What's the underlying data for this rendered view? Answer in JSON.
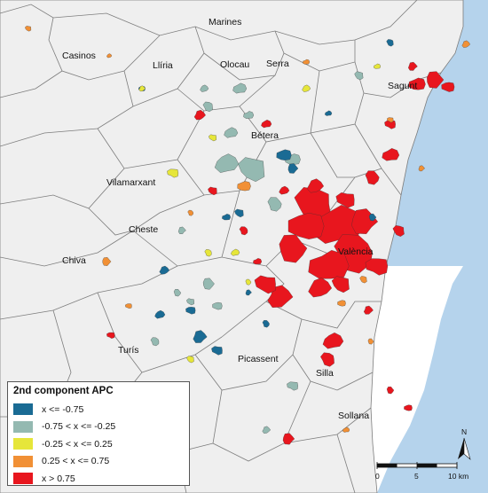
{
  "map": {
    "colors": {
      "land": "#efefef",
      "sea": "#b5d3ec",
      "border": "#7d7d7d"
    },
    "places": [
      {
        "name": "Marines"
      },
      {
        "name": "Casinos"
      },
      {
        "name": "Llíria"
      },
      {
        "name": "Olocau"
      },
      {
        "name": "Serra"
      },
      {
        "name": "Sagunt"
      },
      {
        "name": "Bétera"
      },
      {
        "name": "Vilamarxant"
      },
      {
        "name": "Cheste"
      },
      {
        "name": "Chiva"
      },
      {
        "name": "València"
      },
      {
        "name": "Picassent"
      },
      {
        "name": "Turís"
      },
      {
        "name": "Silla"
      },
      {
        "name": "Sollana"
      }
    ]
  },
  "legend": {
    "title": "2nd component APC",
    "classes": [
      {
        "label": "x <= -0.75",
        "color": "#1a6b94"
      },
      {
        "label": "-0.75 < x <= -0.25",
        "color": "#94b9b1"
      },
      {
        "label": "-0.25 < x <= 0.25",
        "color": "#e6e63a"
      },
      {
        "label": "0.25 < x <= 0.75",
        "color": "#f19035"
      },
      {
        "label": "x > 0.75",
        "color": "#e8161e"
      }
    ]
  },
  "north_arrow": {
    "label": "N"
  },
  "scale_bar": {
    "ticks": [
      "0",
      "5",
      "10 km"
    ]
  }
}
